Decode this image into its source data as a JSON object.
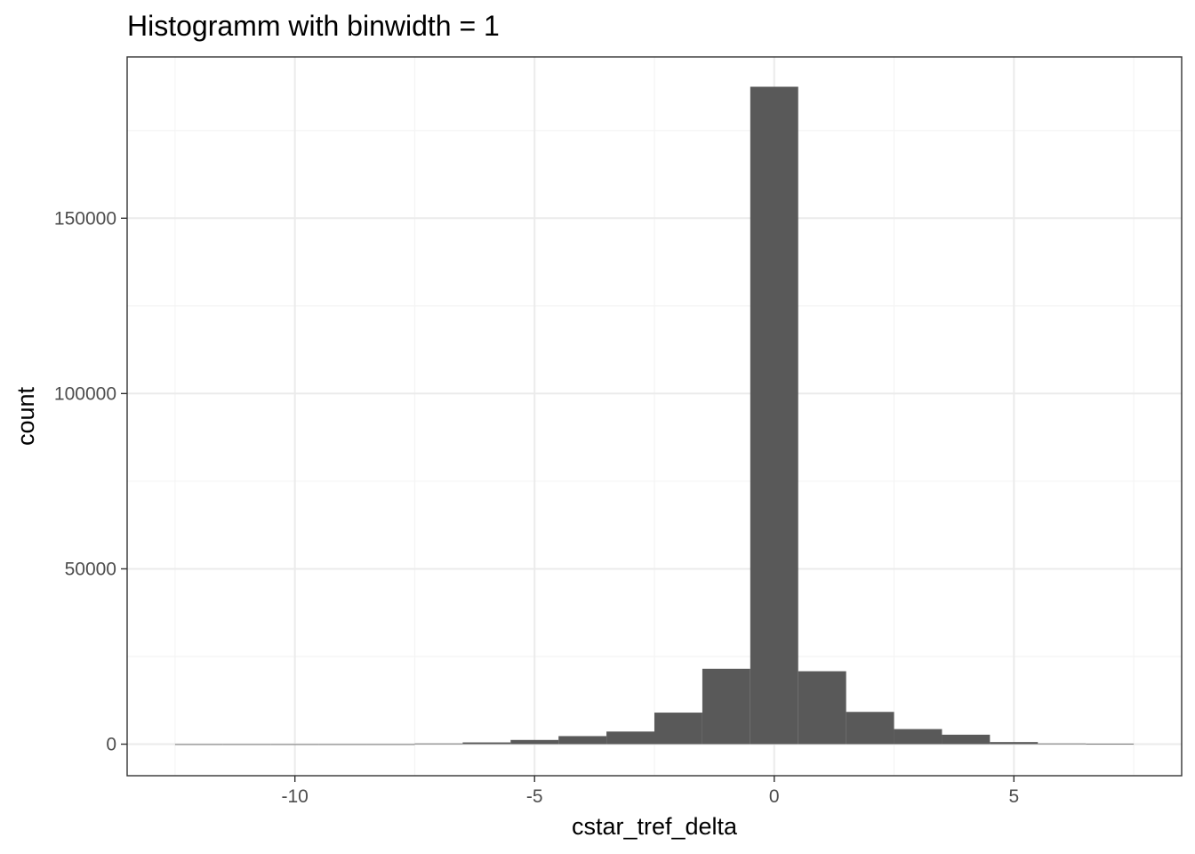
{
  "chart_data": {
    "type": "bar",
    "title": "Histogramm with binwidth = 1",
    "xlabel": "cstar_tref_delta",
    "ylabel": "count",
    "xlim": [
      -13.5,
      8.5
    ],
    "ylim": [
      -9000,
      196000
    ],
    "x_ticks": [
      -10,
      -5,
      0,
      5
    ],
    "x_tick_labels": [
      "-10",
      "-5",
      "0",
      "5"
    ],
    "y_ticks": [
      0,
      50000,
      100000,
      150000
    ],
    "y_tick_labels": [
      "0",
      "50000",
      "100000",
      "150000"
    ],
    "binwidth": 1,
    "bins": [
      {
        "x": -12,
        "count": 0
      },
      {
        "x": -11,
        "count": 0
      },
      {
        "x": -10,
        "count": 0
      },
      {
        "x": -9,
        "count": 0
      },
      {
        "x": -8,
        "count": 0
      },
      {
        "x": -7,
        "count": 200
      },
      {
        "x": -6,
        "count": 500
      },
      {
        "x": -5,
        "count": 1200
      },
      {
        "x": -4,
        "count": 2300
      },
      {
        "x": -3,
        "count": 3600
      },
      {
        "x": -2,
        "count": 9000
      },
      {
        "x": -1,
        "count": 21500
      },
      {
        "x": 0,
        "count": 187500
      },
      {
        "x": 1,
        "count": 20800
      },
      {
        "x": 2,
        "count": 9200
      },
      {
        "x": 3,
        "count": 4300
      },
      {
        "x": 4,
        "count": 2700
      },
      {
        "x": 5,
        "count": 600
      },
      {
        "x": 6,
        "count": 200
      },
      {
        "x": 7,
        "count": 150
      }
    ],
    "bar_color": "#595959",
    "panel_border_color": "#333333",
    "grid_major_color": "#ebebeb",
    "grid_minor_color": "#f4f4f4",
    "grid": true,
    "legend": "none"
  }
}
